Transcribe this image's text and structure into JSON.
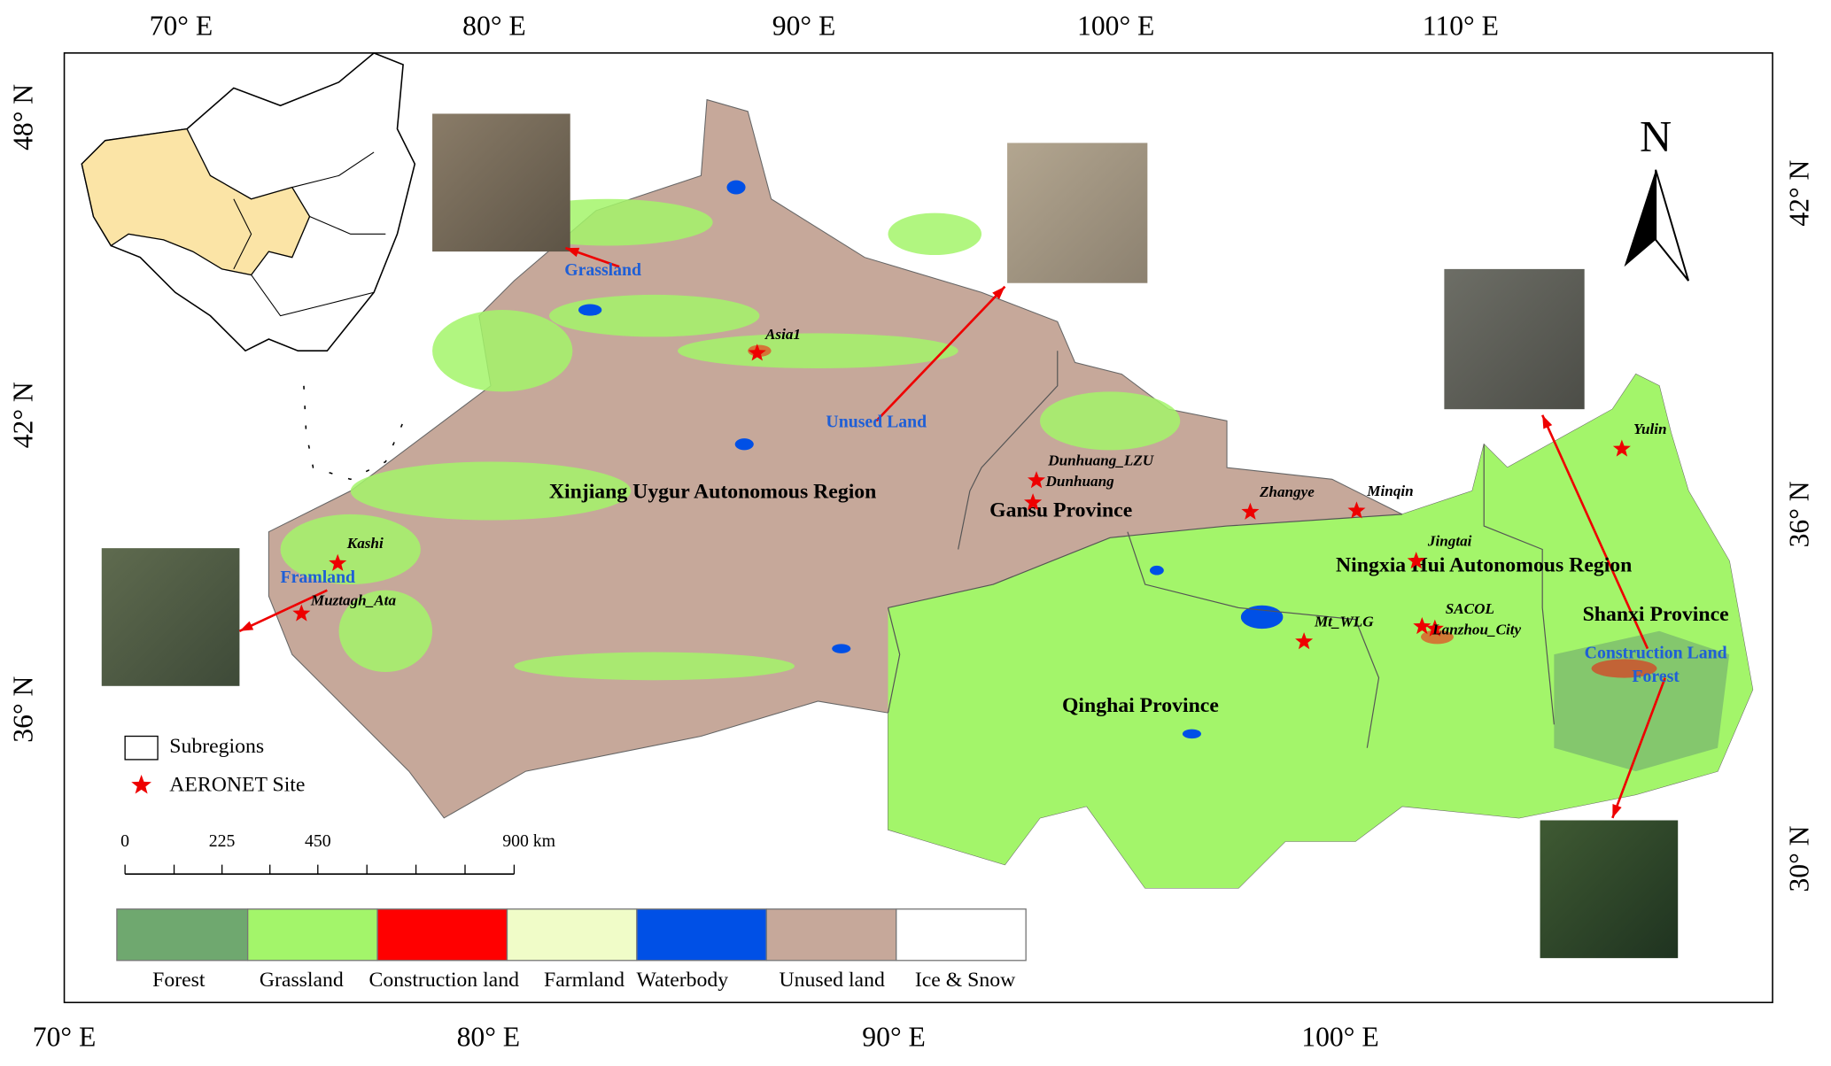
{
  "frame": {
    "top_labels": [
      "70° E",
      "80° E",
      "90° E",
      "100° E",
      "110° E"
    ],
    "bottom_labels": [
      "70° E",
      "80° E",
      "90° E",
      "100° E"
    ],
    "left_labels": [
      "48° N",
      "42° N",
      "36° N"
    ],
    "right_labels": [
      "42° N",
      "36° N",
      "30° N"
    ]
  },
  "north": "N",
  "regions": [
    "Xinjiang Uygur Autonomous Region",
    "Gansu Province",
    "Qinghai Province",
    "Ningxia Hui Autonomous Region",
    "Shanxi Province"
  ],
  "sites": [
    "Asia1",
    "Dunhuang_LZU",
    "Dunhuang",
    "Zhangye",
    "Minqin",
    "Jingtai",
    "SACOL",
    "Lanzhou_City",
    "Mt_WLG",
    "Yulin",
    "Kashi",
    "Muztagh_Ata"
  ],
  "image_labels": [
    "Grassland",
    "Unused Land",
    "Framland",
    "Construction Land",
    "Forest"
  ],
  "legend": {
    "subregions": "Subregions",
    "site": "AERONET Site"
  },
  "scale_bar": [
    "0",
    "225",
    "450",
    "900 km"
  ],
  "land_cover": [
    {
      "label": "Forest",
      "color": "#6fa86f"
    },
    {
      "label": "Grassland",
      "color": "#a3f56a"
    },
    {
      "label": "Construction land",
      "color": "#ff0000"
    },
    {
      "label": "Farmland",
      "color": "#f0fcc8"
    },
    {
      "label": "Waterbody",
      "color": "#0050e6"
    },
    {
      "label": "Unused land",
      "color": "#c6a89a"
    },
    {
      "label": "Ice & Snow",
      "color": "#ffffff"
    }
  ]
}
